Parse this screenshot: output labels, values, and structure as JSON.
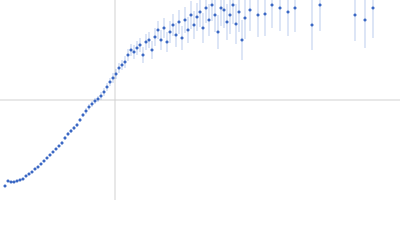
{
  "chart_data": {
    "type": "scatter",
    "xlim": [
      0,
      400
    ],
    "ylim": [
      0,
      200
    ],
    "xticks": [
      115
    ],
    "yticks": [
      100
    ],
    "grid": true,
    "tick_labels": false,
    "series": [
      {
        "color": "#3b68c4",
        "error_color": "#aabfe8",
        "x": [
          5,
          8,
          11,
          14,
          17,
          20,
          23,
          26,
          29,
          32,
          35,
          38,
          41,
          44,
          47,
          50,
          53,
          56,
          59,
          62,
          65,
          68,
          71,
          74,
          77,
          80,
          83,
          86,
          89,
          92,
          95,
          98,
          101,
          104,
          107,
          110,
          113,
          116,
          119,
          122,
          125,
          128,
          131,
          134,
          137,
          140,
          143,
          146,
          149,
          152,
          155,
          158,
          161,
          164,
          167,
          170,
          173,
          176,
          179,
          182,
          185,
          188,
          191,
          194,
          197,
          200,
          203,
          206,
          209,
          212,
          215,
          218,
          221,
          224,
          227,
          230,
          233,
          236,
          239,
          242,
          245,
          250,
          258,
          265,
          272,
          280,
          288,
          295,
          312,
          320,
          355,
          365,
          373
        ],
        "values": [
          14,
          19,
          18,
          18,
          19,
          20,
          21,
          24,
          26,
          28,
          31,
          33,
          36,
          39,
          42,
          45,
          48,
          51,
          54,
          57,
          62,
          66,
          69,
          72,
          75,
          80,
          85,
          89,
          93,
          96,
          99,
          101,
          104,
          108,
          113,
          118,
          122,
          126,
          132,
          135,
          138,
          145,
          150,
          148,
          152,
          155,
          145,
          158,
          160,
          150,
          163,
          170,
          160,
          172,
          158,
          168,
          175,
          165,
          178,
          162,
          180,
          170,
          185,
          175,
          183,
          188,
          172,
          192,
          180,
          195,
          185,
          168,
          192,
          190,
          178,
          185,
          195,
          176,
          188,
          160,
          182,
          190,
          185,
          186,
          195,
          192,
          188,
          192,
          175,
          195,
          185,
          180,
          192
        ],
        "errors": [
          1,
          1,
          1,
          1,
          1,
          1,
          1,
          1,
          1,
          1,
          1,
          1,
          1,
          1,
          1,
          1,
          1,
          1,
          1,
          2,
          2,
          2,
          2,
          2,
          2,
          2,
          2,
          3,
          3,
          3,
          3,
          3,
          4,
          4,
          4,
          4,
          5,
          5,
          5,
          5,
          6,
          6,
          6,
          7,
          7,
          7,
          8,
          8,
          8,
          9,
          9,
          9,
          10,
          10,
          10,
          11,
          11,
          12,
          12,
          12,
          13,
          13,
          14,
          14,
          14,
          15,
          15,
          15,
          16,
          16,
          17,
          17,
          18,
          18,
          18,
          19,
          19,
          20,
          20,
          20,
          21,
          21,
          22,
          22,
          23,
          23,
          24,
          24,
          25,
          26,
          26,
          28,
          30
        ]
      }
    ]
  }
}
